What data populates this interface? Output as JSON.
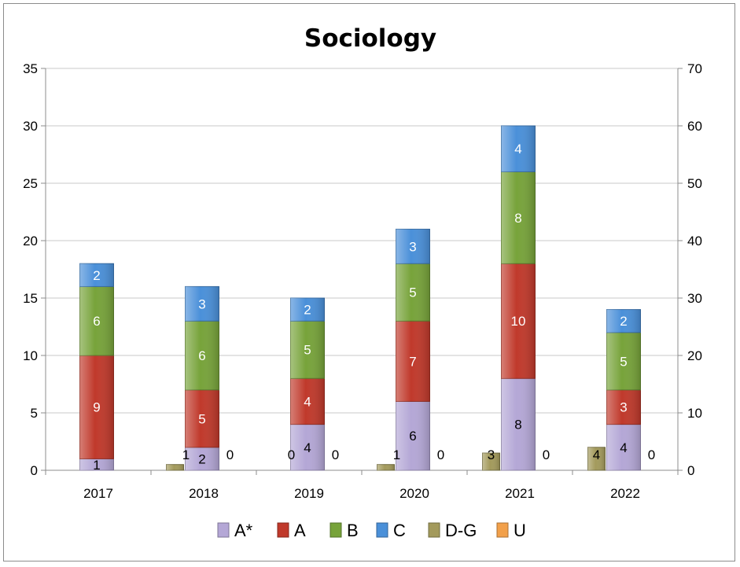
{
  "chart_data": {
    "type": "bar",
    "stacked": true,
    "title": "Sociology",
    "categories": [
      "2017",
      "2018",
      "2019",
      "2020",
      "2021",
      "2022"
    ],
    "ylim": [
      0,
      35
    ],
    "yticks": [
      "0",
      "5",
      "10",
      "15",
      "20",
      "25",
      "30",
      "35"
    ],
    "y2lim": [
      0,
      70
    ],
    "y2ticks": [
      "0",
      "10",
      "20",
      "30",
      "40",
      "50",
      "60",
      "70"
    ],
    "grid": true,
    "legend_position": "bottom",
    "stacked_series": [
      {
        "name": "A*",
        "color": "#b4a7d6",
        "values": [
          1,
          2,
          4,
          6,
          8,
          4
        ]
      },
      {
        "name": "A",
        "color": "#c0392b",
        "values": [
          9,
          5,
          4,
          7,
          10,
          3
        ]
      },
      {
        "name": "B",
        "color": "#77a33a",
        "values": [
          6,
          6,
          5,
          5,
          8,
          5
        ]
      },
      {
        "name": "C",
        "color": "#4a90d9",
        "values": [
          2,
          3,
          2,
          3,
          4,
          2
        ]
      }
    ],
    "side_series": [
      {
        "name": "D-G",
        "color": "#a39a5c",
        "values": [
          0,
          1,
          0,
          1,
          3,
          4
        ],
        "label_positions": [
          "none",
          "right",
          "right",
          "right",
          "left",
          "left"
        ]
      },
      {
        "name": "U",
        "color": "#f2a04a",
        "values": [
          0,
          0,
          0,
          0,
          0,
          0
        ],
        "label_positions": [
          "none",
          "right",
          "right",
          "right",
          "right",
          "right"
        ]
      }
    ],
    "side_labels_0": [
      "",
      "1",
      "0",
      "1",
      "3",
      "4"
    ],
    "side_labels_u": [
      "",
      "0",
      "0",
      "0",
      "0",
      "0"
    ]
  },
  "legend": [
    "A*",
    "A",
    "B",
    "C",
    "D-G",
    "U"
  ]
}
